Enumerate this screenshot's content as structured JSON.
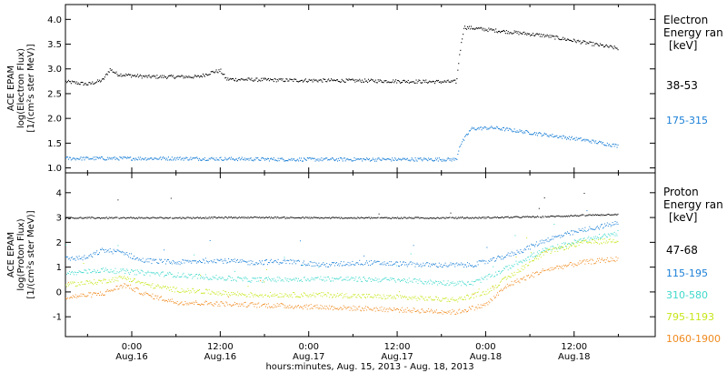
{
  "xaxis": {
    "title": "hours:minutes, Aug. 15, 2013 - Aug. 18, 2013",
    "ticks": [
      {
        "t": 24,
        "time": "0:00",
        "date": "Aug.16"
      },
      {
        "t": 36,
        "time": "12:00",
        "date": "Aug.16"
      },
      {
        "t": 48,
        "time": "0:00",
        "date": "Aug.17"
      },
      {
        "t": 60,
        "time": "12:00",
        "date": "Aug.17"
      },
      {
        "t": 72,
        "time": "0:00",
        "date": "Aug.18"
      },
      {
        "t": 84,
        "time": "12:00",
        "date": "Aug.18"
      }
    ]
  },
  "chart_data": [
    {
      "type": "scatter",
      "panel": "electron",
      "ylabel_lines": [
        "ACE EPAM",
        "log(Electron Flux)",
        "[1/(cm²s ster MeV)]"
      ],
      "ylim": [
        0.9,
        4.3
      ],
      "yticks": [
        1.0,
        1.5,
        2.0,
        2.5,
        3.0,
        3.5,
        4.0
      ],
      "ytick_labels": [
        "1.0",
        "1.5",
        "2.0",
        "2.5",
        "3.0",
        "3.5",
        "4.0"
      ],
      "xlim_hours_since_aug15_0000": [
        15,
        95
      ],
      "legend_title_lines": [
        "Electron",
        "Energy ran"
      ],
      "legend_unit": "[keV]",
      "series": [
        {
          "name": "38-53",
          "color": "#000000",
          "key_points": [
            [
              15,
              2.75
            ],
            [
              18,
              2.7
            ],
            [
              20,
              2.78
            ],
            [
              21,
              3.0
            ],
            [
              22,
              2.9
            ],
            [
              26,
              2.85
            ],
            [
              30,
              2.85
            ],
            [
              33,
              2.85
            ],
            [
              35,
              2.95
            ],
            [
              36,
              2.97
            ],
            [
              36.8,
              2.8
            ],
            [
              45,
              2.78
            ],
            [
              55,
              2.77
            ],
            [
              65,
              2.75
            ],
            [
              68,
              2.75
            ],
            [
              68.4,
              3.3
            ],
            [
              69,
              3.85
            ],
            [
              71,
              3.82
            ],
            [
              80,
              3.68
            ],
            [
              85,
              3.55
            ],
            [
              90,
              3.42
            ]
          ]
        },
        {
          "name": "175-315",
          "color": "#1a7fd6",
          "key_points": [
            [
              15,
              1.2
            ],
            [
              30,
              1.2
            ],
            [
              45,
              1.18
            ],
            [
              60,
              1.18
            ],
            [
              68,
              1.18
            ],
            [
              68.4,
              1.45
            ],
            [
              70,
              1.8
            ],
            [
              73,
              1.82
            ],
            [
              78,
              1.72
            ],
            [
              85,
              1.58
            ],
            [
              90,
              1.45
            ]
          ]
        }
      ]
    },
    {
      "type": "scatter",
      "panel": "proton",
      "ylabel_lines": [
        "ACE EPAM",
        "log(Proton Flux)",
        "[1/(cm²s ster MeV)]"
      ],
      "ylim": [
        -1.8,
        4.8
      ],
      "yticks": [
        -1,
        0,
        1,
        2,
        3,
        4
      ],
      "ytick_labels": [
        "-1",
        "0",
        "1",
        "2",
        "3",
        "4"
      ],
      "xlim_hours_since_aug15_0000": [
        15,
        95
      ],
      "legend_title_lines": [
        "Proton",
        "Energy ran"
      ],
      "legend_unit": "[keV]",
      "series": [
        {
          "name": "47-68",
          "color": "#000000",
          "key_points": [
            [
              15,
              3.0
            ],
            [
              30,
              3.0
            ],
            [
              40,
              3.02
            ],
            [
              50,
              3.0
            ],
            [
              60,
              3.0
            ],
            [
              70,
              3.0
            ],
            [
              80,
              3.05
            ],
            [
              90,
              3.15
            ]
          ]
        },
        {
          "name": "115-195",
          "color": "#1a7fd6",
          "key_points": [
            [
              15,
              1.35
            ],
            [
              18,
              1.4
            ],
            [
              20,
              1.7
            ],
            [
              23,
              1.6
            ],
            [
              25,
              1.3
            ],
            [
              30,
              1.2
            ],
            [
              35,
              1.3
            ],
            [
              40,
              1.2
            ],
            [
              45,
              1.25
            ],
            [
              50,
              1.1
            ],
            [
              55,
              1.2
            ],
            [
              60,
              1.15
            ],
            [
              65,
              1.1
            ],
            [
              70,
              1.1
            ],
            [
              73,
              1.3
            ],
            [
              77,
              1.7
            ],
            [
              80,
              2.1
            ],
            [
              85,
              2.5
            ],
            [
              90,
              2.8
            ]
          ]
        },
        {
          "name": "310-580",
          "color": "#3fd9cc",
          "key_points": [
            [
              15,
              0.75
            ],
            [
              20,
              0.9
            ],
            [
              25,
              0.8
            ],
            [
              30,
              0.7
            ],
            [
              40,
              0.5
            ],
            [
              50,
              0.55
            ],
            [
              60,
              0.5
            ],
            [
              65,
              0.4
            ],
            [
              70,
              0.35
            ],
            [
              73,
              0.7
            ],
            [
              77,
              1.3
            ],
            [
              80,
              1.7
            ],
            [
              85,
              2.1
            ],
            [
              90,
              2.4
            ]
          ]
        },
        {
          "name": "795-1193",
          "color": "#c7e61a",
          "key_points": [
            [
              15,
              0.3
            ],
            [
              20,
              0.45
            ],
            [
              23,
              0.6
            ],
            [
              26,
              0.3
            ],
            [
              30,
              0.1
            ],
            [
              40,
              -0.1
            ],
            [
              50,
              -0.1
            ],
            [
              60,
              -0.2
            ],
            [
              68,
              -0.3
            ],
            [
              72,
              0.0
            ],
            [
              76,
              0.8
            ],
            [
              80,
              1.6
            ],
            [
              85,
              2.0
            ],
            [
              90,
              2.1
            ]
          ]
        },
        {
          "name": "1060-1900",
          "color": "#f08a1e",
          "key_points": [
            [
              15,
              -0.2
            ],
            [
              20,
              -0.05
            ],
            [
              23,
              0.3
            ],
            [
              26,
              -0.1
            ],
            [
              30,
              -0.4
            ],
            [
              40,
              -0.5
            ],
            [
              50,
              -0.6
            ],
            [
              60,
              -0.7
            ],
            [
              68,
              -0.8
            ],
            [
              72,
              -0.5
            ],
            [
              75,
              0.3
            ],
            [
              80,
              0.9
            ],
            [
              85,
              1.2
            ],
            [
              90,
              1.35
            ]
          ]
        }
      ]
    }
  ]
}
